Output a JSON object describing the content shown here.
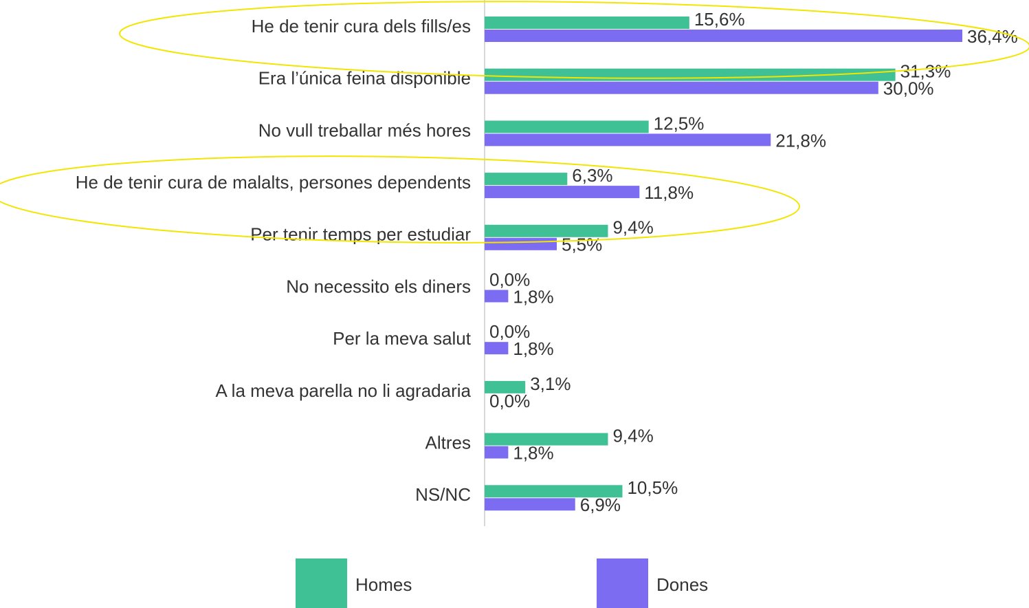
{
  "chart_data": {
    "type": "bar",
    "orientation": "horizontal",
    "categories": [
      "He de tenir cura dels fills/es",
      "Era l’única feina disponible",
      "No vull treballar més hores",
      "He de tenir cura de malalts, persones dependents",
      "Per tenir temps per estudiar",
      "No necessito els diners",
      "Per la meva salut",
      "A la meva parella no li agradaria",
      "Altres",
      "NS/NC"
    ],
    "series": [
      {
        "name": "Homes",
        "color": "#3fc195",
        "values": [
          15.6,
          31.3,
          12.5,
          6.3,
          9.4,
          0.0,
          0.0,
          3.1,
          9.4,
          10.5
        ],
        "value_labels": [
          "15,6%",
          "31,3%",
          "12,5%",
          "6,3%",
          "9,4%",
          "0,0%",
          "0,0%",
          "3,1%",
          "9,4%",
          "10,5%"
        ]
      },
      {
        "name": "Dones",
        "color": "#7c6cf2",
        "values": [
          36.4,
          30.0,
          21.8,
          11.8,
          5.5,
          1.8,
          1.8,
          0.0,
          1.8,
          6.9
        ],
        "value_labels": [
          "36,4%",
          "30,0%",
          "21,8%",
          "11,8%",
          "5,5%",
          "1,8%",
          "1,8%",
          "0,0%",
          "1,8%",
          "6,9%"
        ]
      }
    ],
    "legend": "bottom"
  }
}
